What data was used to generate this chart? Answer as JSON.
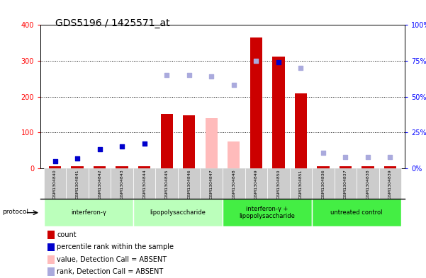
{
  "title": "GDS5196 / 1425571_at",
  "samples": [
    "GSM1304840",
    "GSM1304841",
    "GSM1304842",
    "GSM1304843",
    "GSM1304844",
    "GSM1304845",
    "GSM1304846",
    "GSM1304847",
    "GSM1304848",
    "GSM1304849",
    "GSM1304850",
    "GSM1304851",
    "GSM1304836",
    "GSM1304837",
    "GSM1304838",
    "GSM1304839"
  ],
  "count_values": [
    5,
    5,
    5,
    5,
    5,
    152,
    147,
    null,
    null,
    365,
    312,
    209,
    5,
    5,
    5,
    5
  ],
  "count_absent": [
    null,
    null,
    null,
    null,
    null,
    null,
    null,
    140,
    75,
    null,
    null,
    null,
    null,
    null,
    null,
    null
  ],
  "rank_present": [
    5,
    7,
    13,
    15,
    17,
    null,
    null,
    null,
    null,
    null,
    74,
    null,
    null,
    null,
    null,
    null
  ],
  "rank_absent": [
    null,
    null,
    null,
    null,
    null,
    65,
    65,
    64,
    58,
    75,
    null,
    70,
    11,
    8,
    8,
    8
  ],
  "ylim_left": [
    0,
    400
  ],
  "ylim_right": [
    0,
    100
  ],
  "yticks_left": [
    0,
    100,
    200,
    300,
    400
  ],
  "yticks_right": [
    0,
    25,
    50,
    75,
    100
  ],
  "ytick_labels_right": [
    "0%",
    "25%",
    "50%",
    "75%",
    "100%"
  ],
  "hlines": [
    100,
    200,
    300
  ],
  "group_defs": [
    {
      "start": 0,
      "end": 3,
      "label": "interferon-γ",
      "color": "#bbffbb"
    },
    {
      "start": 4,
      "end": 7,
      "label": "lipopolysaccharide",
      "color": "#bbffbb"
    },
    {
      "start": 8,
      "end": 11,
      "label": "interferon-γ +\nlipopolysaccharide",
      "color": "#44ee44"
    },
    {
      "start": 12,
      "end": 15,
      "label": "untreated control",
      "color": "#44ee44"
    }
  ],
  "bar_color_present": "#cc0000",
  "bar_color_absent": "#ffbbbb",
  "dot_color_present": "#0000cc",
  "dot_color_absent": "#aaaadd",
  "xtick_bg": "#cccccc",
  "title_fontsize": 10,
  "tick_fontsize": 7,
  "legend_fontsize": 7
}
